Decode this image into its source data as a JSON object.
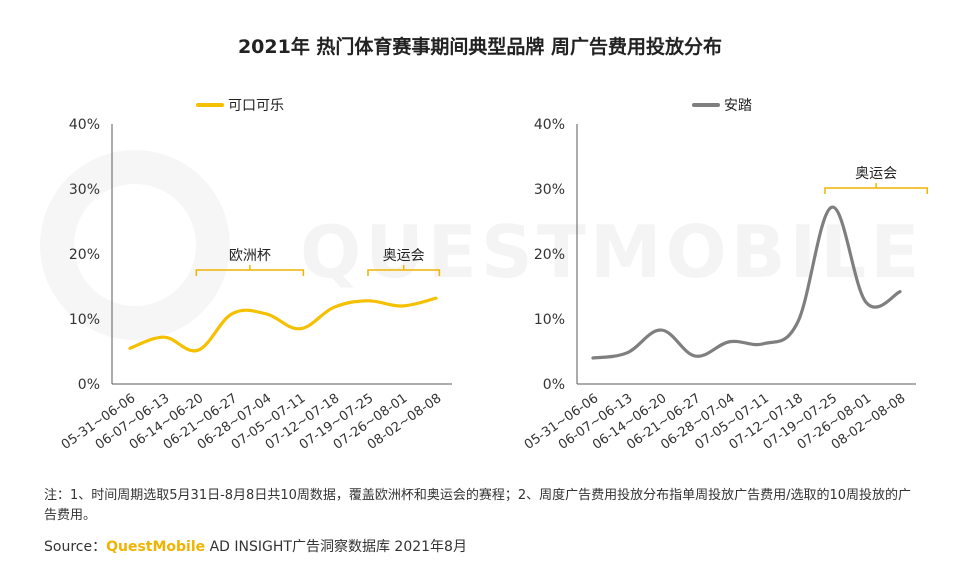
{
  "title": "2021年 热门体育赛事期间典型品牌 周广告费用投放分布",
  "watermark": "QUESTMOBILE",
  "footnote": "注：1、时间周期选取5月31日-8月8日共10周数据，覆盖欧洲杯和奥运会的赛程；2、周度广告费用投放分布指单周投放广告费用/选取的10周投放的广告费用。",
  "source": {
    "prefix": "Source：",
    "brand": "QuestMobile",
    "rest": " AD INSIGHT广告洞察数据库 2021年8月"
  },
  "chart_data": [
    {
      "type": "line",
      "title": "",
      "categories": [
        "05-31~06-06",
        "06-07~06-13",
        "06-14~06-20",
        "06-21~06-27",
        "06-28~07-04",
        "07-05~07-11",
        "07-12~07-18",
        "07-19~07-25",
        "07-26~08-01",
        "08-02~08-08"
      ],
      "series": [
        {
          "name": "可口可乐",
          "values": [
            5.5,
            7.2,
            5.2,
            10.8,
            10.8,
            8.5,
            11.8,
            12.8,
            12.0,
            13.2
          ],
          "color": "#f5c000"
        }
      ],
      "ylim": [
        0,
        40
      ],
      "yticks": [
        "0%",
        "10%",
        "20%",
        "30%",
        "40%"
      ],
      "legend": "top-left",
      "annotations": [
        {
          "label": "欧洲杯",
          "from": 1.95,
          "to": 5.1
        },
        {
          "label": "奥运会",
          "from": 7.0,
          "to": 9.1
        }
      ]
    },
    {
      "type": "line",
      "title": "",
      "categories": [
        "05-31~06-06",
        "06-07~06-13",
        "06-14~06-20",
        "06-21~06-27",
        "06-28~07-04",
        "07-05~07-11",
        "07-12~07-18",
        "07-19~07-25",
        "07-26~08-01",
        "08-02~08-08"
      ],
      "series": [
        {
          "name": "安踏",
          "values": [
            4.0,
            4.8,
            8.3,
            4.3,
            6.5,
            6.2,
            9.5,
            27.2,
            12.6,
            14.2
          ],
          "color": "#7f7f7f"
        }
      ],
      "ylim": [
        0,
        40
      ],
      "yticks": [
        "0%",
        "10%",
        "20%",
        "30%",
        "40%"
      ],
      "legend": "top-left",
      "annotations": [
        {
          "label": "奥运会",
          "from": 6.8,
          "to": 9.8
        }
      ]
    }
  ]
}
